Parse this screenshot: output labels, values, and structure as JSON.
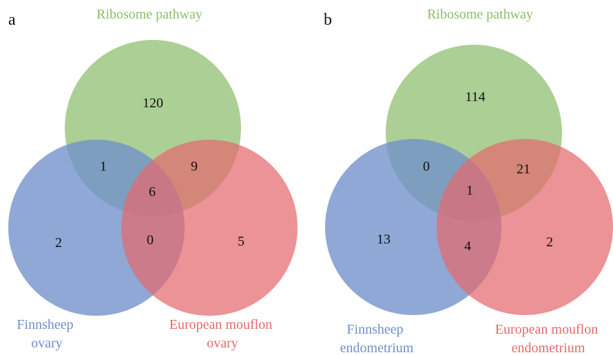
{
  "colors": {
    "ribosome": "#8cbd6c",
    "finnsheep": "#6f8fcb",
    "mouflon": "#e36a6d",
    "label_green": "#8cbd6c",
    "label_blue": "#6f8fcb",
    "label_red": "#e36a6d"
  },
  "panels": [
    {
      "id": "a",
      "label": "a",
      "sets": {
        "ribosome": [
          "Ribosome pathway"
        ],
        "finnsheep": [
          "Finnsheep",
          "ovary"
        ],
        "mouflon": [
          "European mouflon",
          "ovary"
        ]
      },
      "counts": {
        "ribosome_only": "120",
        "ribosome_finnsheep": "1",
        "ribosome_mouflon": "9",
        "all_three": "6",
        "finnsheep_only": "2",
        "finnsheep_mouflon": "0",
        "mouflon_only": "5"
      }
    },
    {
      "id": "b",
      "label": "b",
      "sets": {
        "ribosome": [
          "Ribosome pathway"
        ],
        "finnsheep": [
          "Finnsheep",
          "endometrium"
        ],
        "mouflon": [
          "European mouflon",
          "endometrium"
        ]
      },
      "counts": {
        "ribosome_only": "114",
        "ribosome_finnsheep": "0",
        "ribosome_mouflon": "21",
        "all_three": "1",
        "finnsheep_only": "13",
        "finnsheep_mouflon": "4",
        "mouflon_only": "2"
      }
    }
  ]
}
